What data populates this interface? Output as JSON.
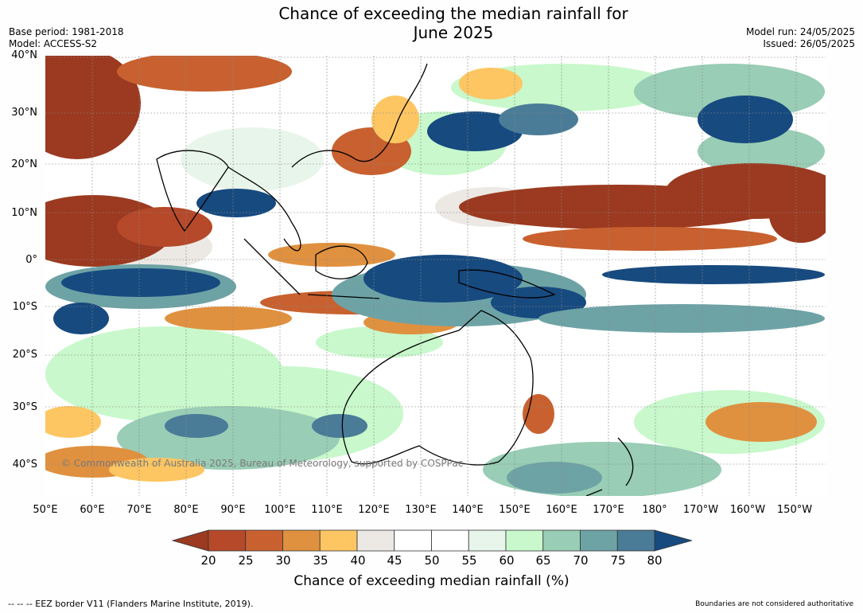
{
  "title": "Chance of exceeding the median rainfall for June 2025",
  "title_line1": "Chance of exceeding the median rainfall for",
  "title_line2": "June 2025",
  "header_left": {
    "base_period": "Base period: 1981-2018",
    "model": "Model: ACCESS-S2"
  },
  "header_right": {
    "model_run": "Model run: 24/05/2025",
    "issued": "Issued: 26/05/2025"
  },
  "lat_labels": [
    "40°N",
    "30°N",
    "20°N",
    "10°N",
    "0°",
    "10°S",
    "20°S",
    "30°S",
    "40°S"
  ],
  "lon_labels": [
    "50°E",
    "60°E",
    "70°E",
    "80°E",
    "90°E",
    "100°E",
    "110°E",
    "120°E",
    "130°E",
    "140°E",
    "150°E",
    "160°E",
    "170°E",
    "180°",
    "170°W",
    "160°W",
    "150°W"
  ],
  "copyright": "© Commonwealth of Australia 2025, Bureau of Meteorology, supported by COSPPac",
  "colorbar": {
    "title": "Chance of exceeding median rainfall (%)",
    "ticks": [
      "20",
      "25",
      "30",
      "35",
      "40",
      "45",
      "50",
      "55",
      "60",
      "65",
      "70",
      "75",
      "80"
    ],
    "colors": [
      "#9b3a20",
      "#b5492a",
      "#c8612f",
      "#e0913f",
      "#fdc662",
      "#ece9e4",
      "#ffffff",
      "#ffffff",
      "#e8f5ea",
      "#c8f8cb",
      "#99cdb5",
      "#6ea3a6",
      "#4a7c98",
      "#174a7f"
    ]
  },
  "footer_left": "--  --  -- EEZ border V11 (Flanders Marine Institute, 2019).",
  "footer_right": "Boundaries are not considered authoritative"
}
